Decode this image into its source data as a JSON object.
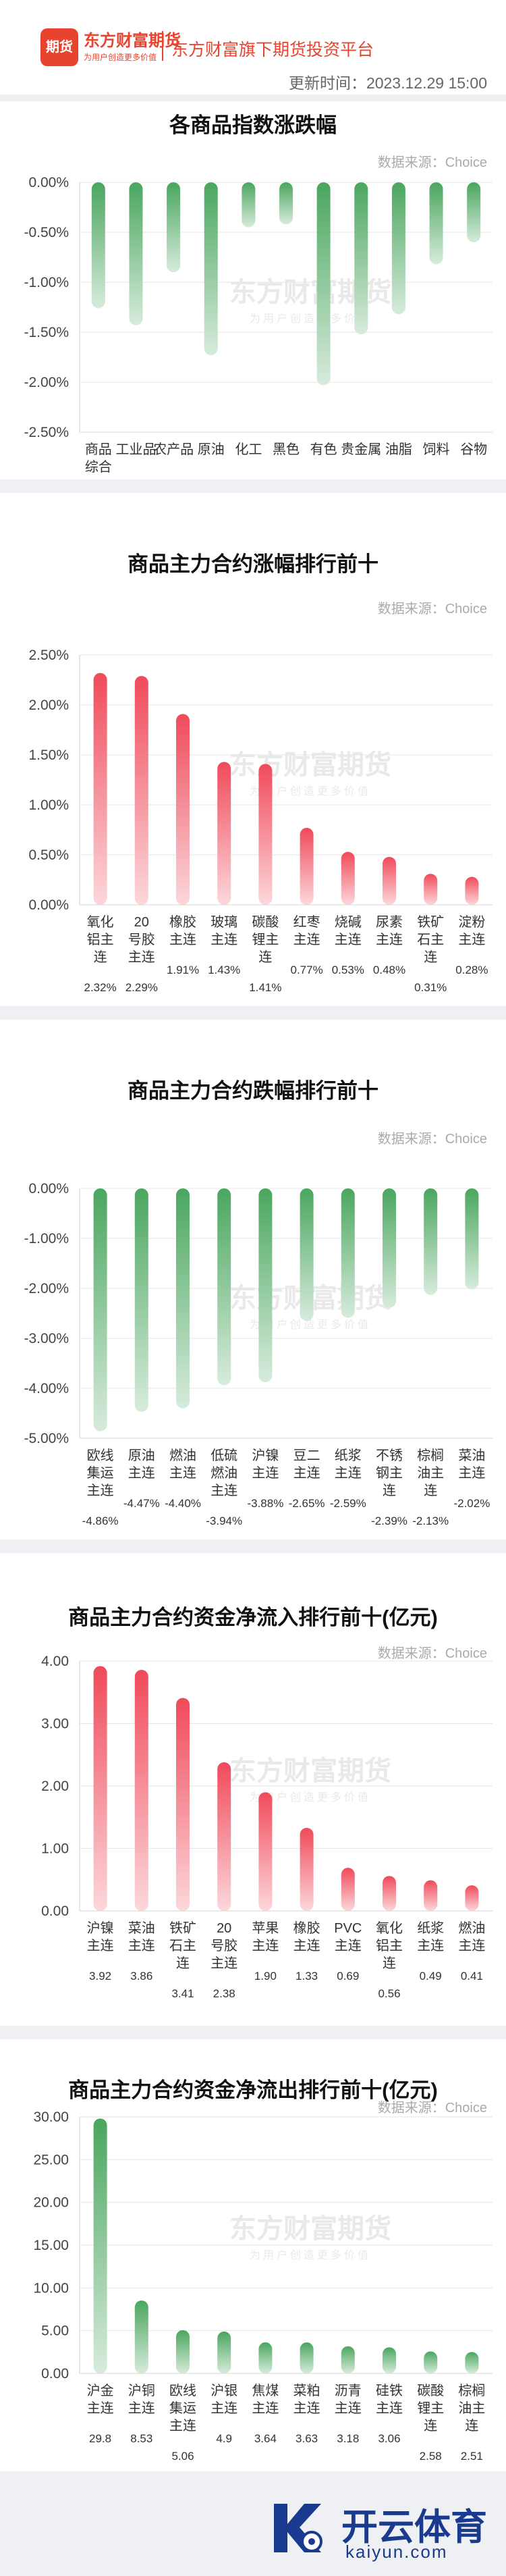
{
  "header": {
    "logo_text": "期货",
    "brand": "东方财富期货",
    "brand_sub": "为用户创造更多价值",
    "platform": "东方财富旗下期货投资平台",
    "update_time": "更新时间：2023.12.29 15:00"
  },
  "watermark": {
    "title": "东方财富期货",
    "sub": "为用户创造更多价值"
  },
  "source_label": "数据来源：Choice",
  "footer": {
    "name": "开云体育",
    "url": "kaiyun.com"
  },
  "charts": [
    {
      "title": "各商品指数涨跌幅",
      "chart_data": {
        "type": "bar",
        "color": "#4aa65e",
        "categories": [
          "商品综合",
          "工业品",
          "农产品",
          "原油",
          "化工",
          "黑色",
          "有色",
          "贵金属",
          "油脂",
          "饲料",
          "谷物"
        ],
        "values": [
          -1.26,
          -1.43,
          -0.9,
          -1.73,
          -0.45,
          -0.42,
          -2.03,
          -1.52,
          -1.32,
          -0.82,
          -0.6
        ],
        "value_labels": [
          "-1.26%",
          "-1.43%",
          "-0.90%",
          "-1.73%",
          "-0.45%",
          "-0.42%",
          "-2.03%",
          "-1.52%",
          "-1.32%",
          "-0.82%",
          "-0.60%"
        ],
        "ylim": [
          -2.5,
          0
        ],
        "yticks": [
          "0.00%",
          "-0.50%",
          "-1.00%",
          "-1.50%",
          "-2.00%",
          "-2.50%"
        ]
      }
    },
    {
      "title": "商品主力合约涨幅排行前十",
      "chart_data": {
        "type": "bar",
        "color": "#f04a5a",
        "categories": [
          "氧化铝主连",
          "20号胶主连",
          "橡胶主连",
          "玻璃主连",
          "碳酸锂主连",
          "红枣主连",
          "烧碱主连",
          "尿素主连",
          "铁矿石主连",
          "淀粉主连"
        ],
        "values": [
          2.32,
          2.29,
          1.91,
          1.43,
          1.41,
          0.77,
          0.53,
          0.48,
          0.31,
          0.28
        ],
        "value_labels": [
          "2.32%",
          "2.29%",
          "1.91%",
          "1.43%",
          "1.41%",
          "0.77%",
          "0.53%",
          "0.48%",
          "0.31%",
          "0.28%"
        ],
        "ylim": [
          0,
          2.5
        ],
        "yticks": [
          "0.00%",
          "0.50%",
          "1.00%",
          "1.50%",
          "2.00%",
          "2.50%"
        ]
      }
    },
    {
      "title": "商品主力合约跌幅排行前十",
      "chart_data": {
        "type": "bar",
        "color": "#4aa65e",
        "categories": [
          "欧线集运主连",
          "原油主连",
          "燃油主连",
          "低硫燃油主连",
          "沪镍主连",
          "豆二主连",
          "纸浆主连",
          "不锈钢主连",
          "棕榈油主连",
          "菜油主连"
        ],
        "values": [
          -4.86,
          -4.47,
          -4.4,
          -3.94,
          -3.88,
          -2.65,
          -2.59,
          -2.39,
          -2.13,
          -2.02
        ],
        "value_labels": [
          "-4.86%",
          "-4.47%",
          "-4.40%",
          "-3.94%",
          "-3.88%",
          "-2.65%",
          "-2.59%",
          "-2.39%",
          "-2.13%",
          "-2.02%"
        ],
        "ylim": [
          -5,
          0
        ],
        "yticks": [
          "0.00%",
          "-1.00%",
          "-2.00%",
          "-3.00%",
          "-4.00%",
          "-5.00%"
        ]
      }
    },
    {
      "title": "商品主力合约资金净流入排行前十(亿元)",
      "chart_data": {
        "type": "bar",
        "color": "#f04a5a",
        "categories": [
          "沪镍主连",
          "菜油主连",
          "铁矿石主连",
          "20号胶主连",
          "苹果主连",
          "橡胶主连",
          "PVC主连",
          "氧化铝主连",
          "纸浆主连",
          "燃油主连"
        ],
        "values": [
          3.92,
          3.86,
          3.41,
          2.38,
          1.9,
          1.33,
          0.69,
          0.56,
          0.49,
          0.41
        ],
        "value_labels": [
          "3.92",
          "3.86",
          "3.41",
          "2.38",
          "1.90",
          "1.33",
          "0.69",
          "0.56",
          "0.49",
          "0.41"
        ],
        "ylim": [
          0,
          4
        ],
        "yticks": [
          "0.00",
          "1.00",
          "2.00",
          "3.00",
          "4.00"
        ]
      }
    },
    {
      "title": "商品主力合约资金净流出排行前十(亿元)",
      "chart_data": {
        "type": "bar",
        "color": "#4aa65e",
        "categories": [
          "沪金主连",
          "沪铜主连",
          "欧线集运主连",
          "沪银主连",
          "焦煤主连",
          "菜粕主连",
          "沥青主连",
          "硅铁主连",
          "碳酸锂主连",
          "棕榈油主连"
        ],
        "values": [
          29.8,
          8.53,
          5.06,
          4.9,
          3.64,
          3.63,
          3.18,
          3.06,
          2.58,
          2.51
        ],
        "value_labels": [
          "29.8",
          "8.53",
          "5.06",
          "4.9",
          "3.64",
          "3.63",
          "3.18",
          "3.06",
          "2.58",
          "2.51"
        ],
        "ylim": [
          0,
          30
        ],
        "yticks": [
          "0.00",
          "5.00",
          "10.00",
          "15.00",
          "20.00",
          "25.00",
          "30.00"
        ]
      }
    }
  ]
}
